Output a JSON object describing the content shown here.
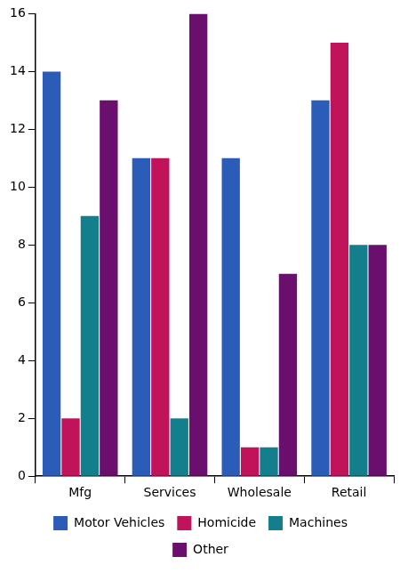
{
  "chart_data": {
    "type": "bar",
    "categories": [
      "Mfg",
      "Services",
      "Wholesale",
      "Retail"
    ],
    "series": [
      {
        "name": "Motor Vehicles",
        "color": "#2a5cb8",
        "values": [
          14,
          11,
          11,
          13
        ]
      },
      {
        "name": "Homicide",
        "color": "#c0135a",
        "values": [
          2,
          11,
          1,
          15
        ]
      },
      {
        "name": "Machines",
        "color": "#137f8c",
        "values": [
          9,
          2,
          1,
          8
        ]
      },
      {
        "name": "Other",
        "color": "#6a0f6e",
        "values": [
          13,
          16,
          7,
          8
        ]
      }
    ],
    "ylim": [
      0,
      16
    ],
    "yticks": [
      0,
      2,
      4,
      6,
      8,
      10,
      12,
      14,
      16
    ],
    "grid": false,
    "legend": "bottom"
  }
}
